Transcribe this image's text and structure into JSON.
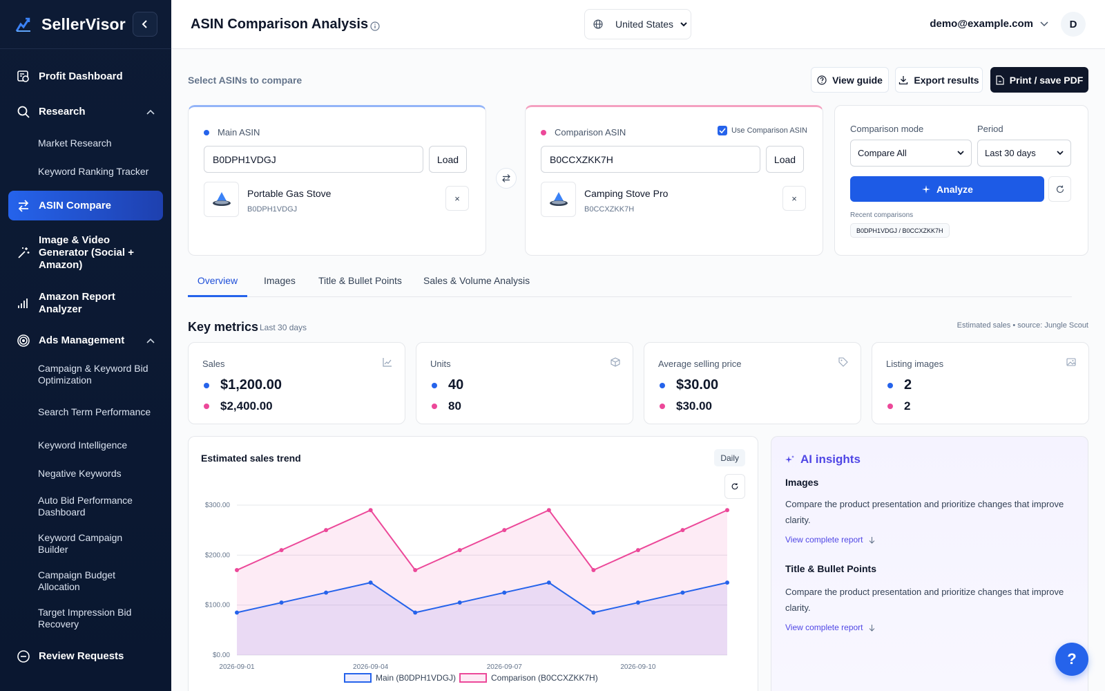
{
  "sidebar": {
    "brand": "SellerVisor",
    "items": [
      {
        "label": "Profit Dashboard"
      },
      {
        "label": "Research"
      },
      {
        "label": "Market Research"
      },
      {
        "label": "Keyword Ranking Tracker"
      },
      {
        "label": "ASIN Compare"
      },
      {
        "label": "Image & Video Generator (Social + Amazon)"
      },
      {
        "label": "Amazon Report Analyzer"
      },
      {
        "label": "Ads Management"
      },
      {
        "label": "Campaign & Keyword Bid Optimization"
      },
      {
        "label": "Search Term Performance"
      },
      {
        "label": "Keyword Intelligence"
      },
      {
        "label": "Negative Keywords"
      },
      {
        "label": "Auto Bid Performance Dashboard"
      },
      {
        "label": "Keyword Campaign Builder"
      },
      {
        "label": "Campaign Budget Allocation"
      },
      {
        "label": "Target Impression Bid Recovery"
      },
      {
        "label": "Review Requests"
      }
    ]
  },
  "header": {
    "title": "ASIN Comparison Analysis",
    "country": "United States",
    "user_email": "demo@example.com",
    "avatar_initial": "D"
  },
  "toolbar": {
    "select_label": "Select ASINs to compare",
    "view_guide": "View guide",
    "export": "Export results",
    "print": "Print / save PDF"
  },
  "main_asin": {
    "label": "Main ASIN",
    "value": "B0DPH1VDGJ",
    "load": "Load",
    "product_name": "Portable Gas Stove",
    "product_asin": "B0DPH1VDGJ",
    "remove": "×",
    "color": "#2563eb"
  },
  "comparison_asin": {
    "label": "Comparison ASIN",
    "use_label": "Use Comparison ASIN",
    "use_checked": true,
    "value": "B0CCXZKK7H",
    "load": "Load",
    "product_name": "Camping Stove Pro",
    "product_asin": "B0CCXZKK7H",
    "remove": "×",
    "color": "#ec4899"
  },
  "controls": {
    "mode_label": "Comparison mode",
    "mode_value": "Compare All",
    "period_label": "Period",
    "period_value": "Last 30 days",
    "analyze": "Analyze",
    "recent_label": "Recent comparisons",
    "recent_chip": "B0DPH1VDGJ / B0CCXZKK7H"
  },
  "tabs": [
    {
      "label": "Overview"
    },
    {
      "label": "Images"
    },
    {
      "label": "Title & Bullet Points"
    },
    {
      "label": "Sales & Volume Analysis"
    }
  ],
  "key_metrics": {
    "title": "Key metrics",
    "period": "Last 30 days",
    "source": "Estimated sales • source: Jungle Scout",
    "cards": [
      {
        "label": "Sales",
        "main": "$1,200.00",
        "comp": "$2,400.00",
        "icon": "trend-icon"
      },
      {
        "label": "Units",
        "main": "40",
        "comp": "80",
        "icon": "box-icon"
      },
      {
        "label": "Average selling price",
        "main": "$30.00",
        "comp": "$30.00",
        "icon": "tag-icon"
      },
      {
        "label": "Listing images",
        "main": "2",
        "comp": "2",
        "icon": "image-icon"
      }
    ]
  },
  "sales_chart": {
    "title": "Estimated sales trend",
    "granularity": "Daily"
  },
  "chart_data": {
    "type": "area",
    "x": [
      "2026-09-01",
      "2026-09-02",
      "2026-09-03",
      "2026-09-04",
      "2026-09-05",
      "2026-09-06",
      "2026-09-07",
      "2026-09-08",
      "2026-09-09",
      "2026-09-10",
      "2026-09-11",
      "2026-09-12"
    ],
    "xticks": [
      "2026-09-01",
      "2026-09-04",
      "2026-09-07",
      "2026-09-10"
    ],
    "yticks": [
      "$0.00",
      "$100.00",
      "$200.00",
      "$300.00"
    ],
    "ylim": [
      0,
      300
    ],
    "series": [
      {
        "name": "Main (B0DPH1VDGJ)",
        "values": [
          85,
          105,
          125,
          145,
          85,
          105,
          125,
          145,
          85,
          105,
          125,
          145
        ],
        "color": "#2563eb"
      },
      {
        "name": "Comparison (B0CCXZKK7H)",
        "values": [
          170,
          210,
          250,
          290,
          170,
          210,
          250,
          290,
          170,
          210,
          250,
          290
        ],
        "color": "#ec4899"
      }
    ],
    "grid": true,
    "legend": "bottom"
  },
  "ai_insights": {
    "title": "AI insights",
    "sections": [
      {
        "heading": "Images",
        "text": "Compare the product presentation and prioritize changes that improve clarity.",
        "link": "View complete report"
      },
      {
        "heading": "Title & Bullet Points",
        "text": "Compare the product presentation and prioritize changes that improve clarity.",
        "link": "View complete report"
      }
    ]
  },
  "help": "?"
}
